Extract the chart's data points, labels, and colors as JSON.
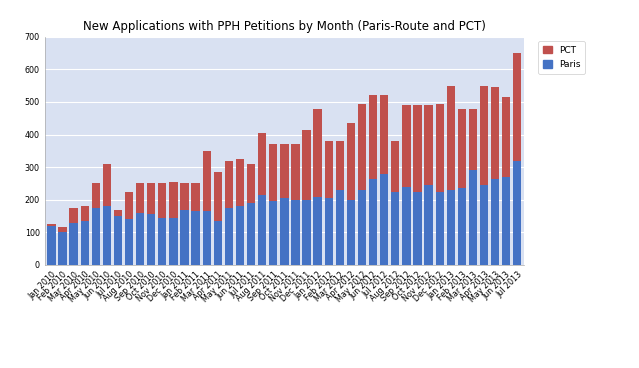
{
  "title": "New Applications with PPH Petitions by Month (Paris-Route and PCT)",
  "categories": [
    "Jan 2010",
    "Feb 2010",
    "Mar 2010",
    "Apr 2010",
    "May 2010",
    "Jun 2010",
    "Jul 2010",
    "Aug 2010",
    "Sep 2010",
    "Oct 2010",
    "Nov 2010",
    "Dec 2010",
    "Jan 2011",
    "Feb 2011",
    "Mar 2011",
    "Apr 2011",
    "May 2011",
    "Jun 2011",
    "Jul 2011",
    "Aug 2011",
    "Sep 2011",
    "Oct 2011",
    "Nov 2011",
    "Dec 2011",
    "Jan 2012",
    "Feb 2012",
    "Mar 2012",
    "Apr 2012",
    "May 2012",
    "Jun 2012",
    "Jul 2012",
    "Aug 2012",
    "Sep 2012",
    "Oct 2012",
    "Nov 2012",
    "Dec 2012",
    "Jan 2013",
    "Feb 2013",
    "Mar 2013",
    "Apr 2013",
    "May 2013",
    "Jun 2013",
    "Jul 2013"
  ],
  "paris": [
    120,
    100,
    130,
    135,
    175,
    180,
    150,
    140,
    160,
    155,
    145,
    145,
    170,
    165,
    165,
    135,
    175,
    180,
    190,
    215,
    195,
    205,
    200,
    200,
    210,
    205,
    230,
    200,
    230,
    265,
    280,
    225,
    240,
    225,
    245,
    225,
    230,
    235,
    290,
    245,
    265,
    270,
    320
  ],
  "pct": [
    5,
    15,
    45,
    45,
    75,
    130,
    20,
    85,
    90,
    95,
    105,
    110,
    80,
    85,
    185,
    150,
    145,
    145,
    120,
    190,
    175,
    165,
    170,
    215,
    270,
    175,
    150,
    235,
    265,
    255,
    240,
    155,
    250,
    265,
    245,
    270,
    320,
    245,
    190,
    305,
    280,
    245,
    330
  ],
  "paris_color": "#4472C4",
  "pct_color": "#C0504D",
  "plot_bg_color": "#D9E1F2",
  "outer_bg_color": "#FFFFFF",
  "ylim": [
    0,
    700
  ],
  "yticks": [
    0,
    100,
    200,
    300,
    400,
    500,
    600,
    700
  ],
  "title_fontsize": 8.5,
  "tick_fontsize": 5.8,
  "legend_fontsize": 6.5,
  "bar_width": 0.75
}
